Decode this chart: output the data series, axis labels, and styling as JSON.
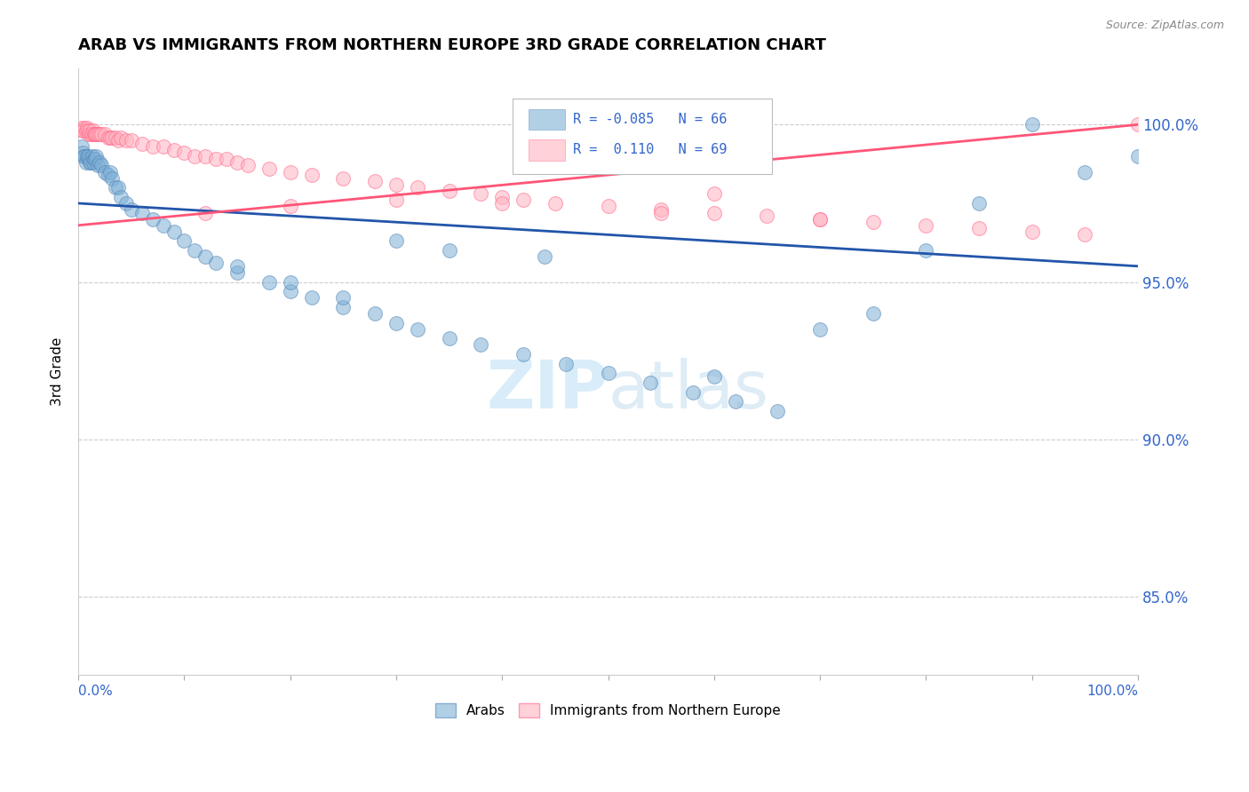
{
  "title": "ARAB VS IMMIGRANTS FROM NORTHERN EUROPE 3RD GRADE CORRELATION CHART",
  "source": "Source: ZipAtlas.com",
  "ylabel": "3rd Grade",
  "legend_label1": "Arabs",
  "legend_label2": "Immigrants from Northern Europe",
  "R1": -0.085,
  "N1": 66,
  "R2": 0.11,
  "N2": 69,
  "blue_color": "#7EB0D5",
  "pink_color": "#FFB3C1",
  "line_blue": "#2255AA",
  "line_pink": "#FF5577",
  "ytick_labels": [
    "85.0%",
    "90.0%",
    "95.0%",
    "100.0%"
  ],
  "ytick_values": [
    0.85,
    0.9,
    0.95,
    1.0
  ],
  "xlim": [
    0.0,
    1.0
  ],
  "ylim": [
    0.825,
    1.018
  ],
  "blue_line_y0": 0.975,
  "blue_line_y1": 0.955,
  "pink_line_y0": 0.968,
  "pink_line_y1": 1.0,
  "blue_scatter_x": [
    0.003,
    0.004,
    0.005,
    0.006,
    0.007,
    0.008,
    0.009,
    0.01,
    0.011,
    0.012,
    0.013,
    0.014,
    0.015,
    0.016,
    0.017,
    0.018,
    0.02,
    0.022,
    0.025,
    0.028,
    0.03,
    0.032,
    0.035,
    0.038,
    0.04,
    0.045,
    0.05,
    0.06,
    0.07,
    0.08,
    0.09,
    0.1,
    0.11,
    0.12,
    0.13,
    0.15,
    0.18,
    0.2,
    0.22,
    0.25,
    0.28,
    0.3,
    0.32,
    0.35,
    0.38,
    0.42,
    0.46,
    0.5,
    0.54,
    0.58,
    0.62,
    0.66,
    0.7,
    0.75,
    0.8,
    0.85,
    0.9,
    0.95,
    1.0,
    0.15,
    0.2,
    0.25,
    0.3,
    0.35,
    0.44,
    0.6
  ],
  "blue_scatter_y": [
    0.993,
    0.991,
    0.99,
    0.99,
    0.988,
    0.99,
    0.99,
    0.989,
    0.988,
    0.988,
    0.99,
    0.988,
    0.989,
    0.989,
    0.99,
    0.987,
    0.988,
    0.987,
    0.985,
    0.984,
    0.985,
    0.983,
    0.98,
    0.98,
    0.977,
    0.975,
    0.973,
    0.972,
    0.97,
    0.968,
    0.966,
    0.963,
    0.96,
    0.958,
    0.956,
    0.953,
    0.95,
    0.947,
    0.945,
    0.942,
    0.94,
    0.937,
    0.935,
    0.932,
    0.93,
    0.927,
    0.924,
    0.921,
    0.918,
    0.915,
    0.912,
    0.909,
    0.935,
    0.94,
    0.96,
    0.975,
    1.0,
    0.985,
    0.99,
    0.955,
    0.95,
    0.945,
    0.963,
    0.96,
    0.958,
    0.92
  ],
  "pink_scatter_x": [
    0.003,
    0.004,
    0.005,
    0.006,
    0.007,
    0.008,
    0.009,
    0.01,
    0.011,
    0.012,
    0.013,
    0.014,
    0.015,
    0.016,
    0.017,
    0.018,
    0.02,
    0.022,
    0.025,
    0.028,
    0.03,
    0.032,
    0.035,
    0.038,
    0.04,
    0.045,
    0.05,
    0.06,
    0.07,
    0.08,
    0.09,
    0.1,
    0.11,
    0.12,
    0.13,
    0.14,
    0.15,
    0.16,
    0.18,
    0.2,
    0.22,
    0.25,
    0.28,
    0.3,
    0.32,
    0.35,
    0.38,
    0.4,
    0.42,
    0.45,
    0.5,
    0.55,
    0.6,
    0.65,
    0.7,
    0.75,
    0.8,
    0.85,
    0.9,
    0.95,
    1.0,
    0.55,
    0.7,
    0.12,
    0.2,
    0.3,
    0.4,
    0.5,
    0.6
  ],
  "pink_scatter_y": [
    0.999,
    0.998,
    0.998,
    0.999,
    0.998,
    0.999,
    0.998,
    0.997,
    0.998,
    0.997,
    0.997,
    0.998,
    0.997,
    0.997,
    0.997,
    0.997,
    0.997,
    0.997,
    0.997,
    0.996,
    0.996,
    0.996,
    0.996,
    0.995,
    0.996,
    0.995,
    0.995,
    0.994,
    0.993,
    0.993,
    0.992,
    0.991,
    0.99,
    0.99,
    0.989,
    0.989,
    0.988,
    0.987,
    0.986,
    0.985,
    0.984,
    0.983,
    0.982,
    0.981,
    0.98,
    0.979,
    0.978,
    0.977,
    0.976,
    0.975,
    0.974,
    0.973,
    0.972,
    0.971,
    0.97,
    0.969,
    0.968,
    0.967,
    0.966,
    0.965,
    1.0,
    0.972,
    0.97,
    0.972,
    0.974,
    0.976,
    0.975,
    0.988,
    0.978
  ]
}
